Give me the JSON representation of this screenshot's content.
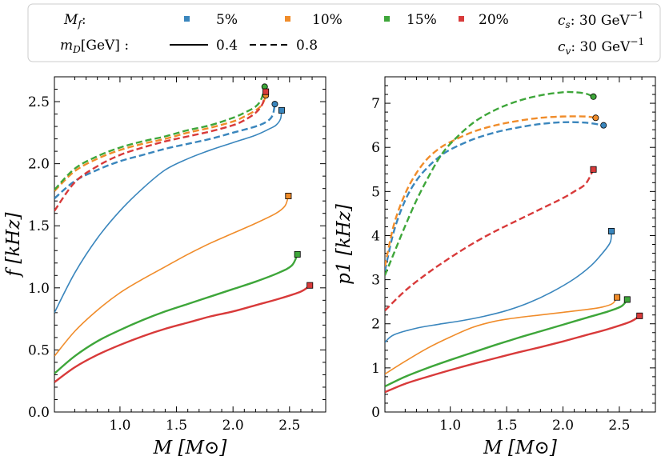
{
  "legend": {
    "mf_label": "M",
    "mf_sub": "f",
    "mf_colon": ":",
    "md_label": "m",
    "md_sub": "D",
    "md_unit": "[GeV] :",
    "mf_entries": [
      {
        "label": "5%",
        "color": "#3a86bd"
      },
      {
        "label": "10%",
        "color": "#f08c2a"
      },
      {
        "label": "15%",
        "color": "#3ea63a"
      },
      {
        "label": "20%",
        "color": "#d83a3a"
      }
    ],
    "md_entries": [
      {
        "label": "0.4",
        "style": "solid"
      },
      {
        "label": "0.8",
        "style": "dashed"
      }
    ],
    "cs_text": ": 30 GeV",
    "cs_sym": "c",
    "cs_sub": "s",
    "cv_text": ": 30 GeV",
    "cv_sym": "c",
    "cv_sub": "v",
    "exp": "−1"
  },
  "chart_data": [
    {
      "type": "line",
      "id": "left",
      "xlabel": "M [M⊙]",
      "ylabel": "f [kHz]",
      "xlim": [
        0.42,
        2.82
      ],
      "ylim": [
        0.0,
        2.7
      ],
      "xticks": [
        "1.0",
        "1.5",
        "2.0",
        "2.5"
      ],
      "xtick_values": [
        1.0,
        1.5,
        2.0,
        2.5
      ],
      "yticks": [
        "0.0",
        "0.5",
        "1.0",
        "1.5",
        "2.0",
        "2.5"
      ],
      "ytick_values": [
        0.0,
        0.5,
        1.0,
        1.5,
        2.0,
        2.5
      ],
      "series": [
        {
          "name": "5% 0.4",
          "color": "#3a86bd",
          "style": "solid",
          "end_marker": "square",
          "x": [
            0.42,
            0.6,
            0.8,
            1.0,
            1.2,
            1.4,
            1.6,
            1.8,
            2.0,
            2.2,
            2.32,
            2.38,
            2.42,
            2.43
          ],
          "y": [
            0.8,
            1.12,
            1.4,
            1.62,
            1.8,
            1.95,
            2.04,
            2.11,
            2.17,
            2.23,
            2.28,
            2.31,
            2.36,
            2.43
          ]
        },
        {
          "name": "10% 0.4",
          "color": "#f08c2a",
          "style": "solid",
          "end_marker": "square",
          "x": [
            0.42,
            0.6,
            0.8,
            1.0,
            1.2,
            1.4,
            1.6,
            1.8,
            2.0,
            2.2,
            2.38,
            2.46,
            2.49
          ],
          "y": [
            0.45,
            0.65,
            0.82,
            0.96,
            1.07,
            1.17,
            1.27,
            1.36,
            1.44,
            1.52,
            1.6,
            1.66,
            1.74
          ]
        },
        {
          "name": "15% 0.4",
          "color": "#3ea63a",
          "style": "solid",
          "end_marker": "square",
          "x": [
            0.42,
            0.6,
            0.8,
            1.0,
            1.2,
            1.4,
            1.6,
            1.8,
            2.0,
            2.2,
            2.4,
            2.52,
            2.57
          ],
          "y": [
            0.31,
            0.45,
            0.57,
            0.66,
            0.74,
            0.81,
            0.87,
            0.93,
            0.99,
            1.05,
            1.12,
            1.18,
            1.27
          ]
        },
        {
          "name": "20% 0.4",
          "color": "#d83a3a",
          "style": "solid",
          "end_marker": "square",
          "x": [
            0.42,
            0.6,
            0.8,
            1.0,
            1.2,
            1.4,
            1.6,
            1.8,
            2.0,
            2.2,
            2.4,
            2.6,
            2.68
          ],
          "y": [
            0.24,
            0.36,
            0.46,
            0.54,
            0.61,
            0.67,
            0.72,
            0.77,
            0.81,
            0.86,
            0.91,
            0.97,
            1.02
          ]
        },
        {
          "name": "5% 0.8",
          "color": "#3a86bd",
          "style": "dashed",
          "end_marker": "circle",
          "x": [
            0.42,
            0.6,
            0.8,
            1.0,
            1.2,
            1.4,
            1.6,
            1.8,
            2.0,
            2.2,
            2.3,
            2.35,
            2.37
          ],
          "y": [
            1.72,
            1.86,
            1.95,
            2.02,
            2.07,
            2.12,
            2.16,
            2.2,
            2.25,
            2.3,
            2.34,
            2.39,
            2.48
          ]
        },
        {
          "name": "10% 0.8",
          "color": "#f08c2a",
          "style": "dashed",
          "end_marker": "circle",
          "x": [
            0.42,
            0.6,
            0.8,
            1.0,
            1.2,
            1.4,
            1.6,
            1.8,
            2.0,
            2.1,
            2.2,
            2.26,
            2.29
          ],
          "y": [
            1.78,
            1.94,
            2.04,
            2.11,
            2.16,
            2.2,
            2.25,
            2.29,
            2.34,
            2.38,
            2.43,
            2.48,
            2.55
          ]
        },
        {
          "name": "15% 0.8",
          "color": "#3ea63a",
          "style": "dashed",
          "end_marker": "circle",
          "x": [
            0.42,
            0.6,
            0.8,
            1.0,
            1.2,
            1.4,
            1.6,
            1.8,
            2.0,
            2.1,
            2.2,
            2.25,
            2.28
          ],
          "y": [
            1.79,
            1.96,
            2.06,
            2.13,
            2.18,
            2.22,
            2.27,
            2.31,
            2.37,
            2.41,
            2.46,
            2.52,
            2.62
          ]
        },
        {
          "name": "20% 0.8",
          "color": "#d83a3a",
          "style": "dashed",
          "end_marker": "square",
          "x": [
            0.42,
            0.6,
            0.8,
            1.0,
            1.2,
            1.4,
            1.6,
            1.8,
            2.0,
            2.1,
            2.2,
            2.26,
            2.29
          ],
          "y": [
            1.62,
            1.85,
            1.98,
            2.07,
            2.13,
            2.18,
            2.22,
            2.26,
            2.31,
            2.35,
            2.41,
            2.48,
            2.58
          ]
        }
      ]
    },
    {
      "type": "line",
      "id": "right",
      "xlabel": "M [M⊙]",
      "ylabel": "p1 [kHz]",
      "xlim": [
        0.42,
        2.82
      ],
      "ylim": [
        0.0,
        7.6
      ],
      "xticks": [
        "1.0",
        "1.5",
        "2.0",
        "2.5"
      ],
      "xtick_values": [
        1.0,
        1.5,
        2.0,
        2.5
      ],
      "yticks": [
        "0",
        "1",
        "2",
        "3",
        "4",
        "5",
        "6",
        "7"
      ],
      "ytick_values": [
        0,
        1,
        2,
        3,
        4,
        5,
        6,
        7
      ],
      "series": [
        {
          "name": "5% 0.4",
          "color": "#3a86bd",
          "style": "solid",
          "end_marker": "square",
          "x": [
            0.42,
            0.5,
            0.7,
            0.9,
            1.1,
            1.3,
            1.5,
            1.7,
            1.9,
            2.1,
            2.25,
            2.35,
            2.42,
            2.43
          ],
          "y": [
            1.58,
            1.75,
            1.9,
            1.99,
            2.07,
            2.17,
            2.3,
            2.48,
            2.72,
            3.02,
            3.32,
            3.6,
            3.85,
            4.1
          ]
        },
        {
          "name": "10% 0.4",
          "color": "#f08c2a",
          "style": "solid",
          "end_marker": "square",
          "x": [
            0.42,
            0.6,
            0.8,
            1.0,
            1.2,
            1.4,
            1.6,
            1.8,
            2.0,
            2.2,
            2.35,
            2.44,
            2.48
          ],
          "y": [
            0.86,
            1.15,
            1.45,
            1.7,
            1.92,
            2.06,
            2.14,
            2.2,
            2.26,
            2.32,
            2.38,
            2.46,
            2.6
          ]
        },
        {
          "name": "15% 0.4",
          "color": "#3ea63a",
          "style": "solid",
          "end_marker": "square",
          "x": [
            0.42,
            0.6,
            0.8,
            1.0,
            1.2,
            1.4,
            1.6,
            1.8,
            2.0,
            2.2,
            2.4,
            2.52,
            2.57
          ],
          "y": [
            0.58,
            0.8,
            1.0,
            1.18,
            1.35,
            1.52,
            1.68,
            1.83,
            1.98,
            2.13,
            2.28,
            2.4,
            2.55
          ]
        },
        {
          "name": "20% 0.4",
          "color": "#d83a3a",
          "style": "solid",
          "end_marker": "square",
          "x": [
            0.42,
            0.6,
            0.8,
            1.0,
            1.2,
            1.4,
            1.6,
            1.8,
            2.0,
            2.2,
            2.4,
            2.6,
            2.68
          ],
          "y": [
            0.45,
            0.64,
            0.8,
            0.95,
            1.09,
            1.22,
            1.35,
            1.47,
            1.6,
            1.74,
            1.88,
            2.05,
            2.18
          ]
        },
        {
          "name": "5% 0.8",
          "color": "#3a86bd",
          "style": "dashed",
          "end_marker": "circle",
          "x": [
            0.42,
            0.5,
            0.6,
            0.7,
            0.8,
            0.9,
            1.0,
            1.2,
            1.4,
            1.6,
            1.8,
            2.0,
            2.2,
            2.36
          ],
          "y": [
            3.2,
            4.1,
            4.8,
            5.25,
            5.55,
            5.78,
            5.95,
            6.18,
            6.34,
            6.45,
            6.53,
            6.57,
            6.56,
            6.5
          ]
        },
        {
          "name": "10% 0.8",
          "color": "#f08c2a",
          "style": "dashed",
          "end_marker": "circle",
          "x": [
            0.42,
            0.5,
            0.6,
            0.7,
            0.8,
            0.9,
            1.0,
            1.2,
            1.4,
            1.6,
            1.8,
            2.0,
            2.2,
            2.29
          ],
          "y": [
            3.3,
            4.25,
            4.95,
            5.42,
            5.75,
            5.97,
            6.12,
            6.35,
            6.5,
            6.6,
            6.67,
            6.7,
            6.7,
            6.67
          ]
        },
        {
          "name": "15% 0.8",
          "color": "#3ea63a",
          "style": "dashed",
          "end_marker": "circle",
          "x": [
            0.42,
            0.5,
            0.6,
            0.7,
            0.8,
            0.9,
            1.0,
            1.2,
            1.4,
            1.6,
            1.8,
            2.0,
            2.1,
            2.2,
            2.27
          ],
          "y": [
            3.1,
            3.6,
            4.22,
            4.8,
            5.3,
            5.75,
            6.08,
            6.55,
            6.85,
            7.05,
            7.18,
            7.25,
            7.25,
            7.22,
            7.15
          ]
        },
        {
          "name": "20% 0.8",
          "color": "#d83a3a",
          "style": "dashed",
          "end_marker": "square",
          "x": [
            0.42,
            0.6,
            0.8,
            1.0,
            1.2,
            1.4,
            1.6,
            1.8,
            2.0,
            2.1,
            2.2,
            2.27
          ],
          "y": [
            2.3,
            2.75,
            3.15,
            3.5,
            3.82,
            4.1,
            4.35,
            4.6,
            4.85,
            5.0,
            5.17,
            5.5
          ]
        }
      ]
    }
  ]
}
